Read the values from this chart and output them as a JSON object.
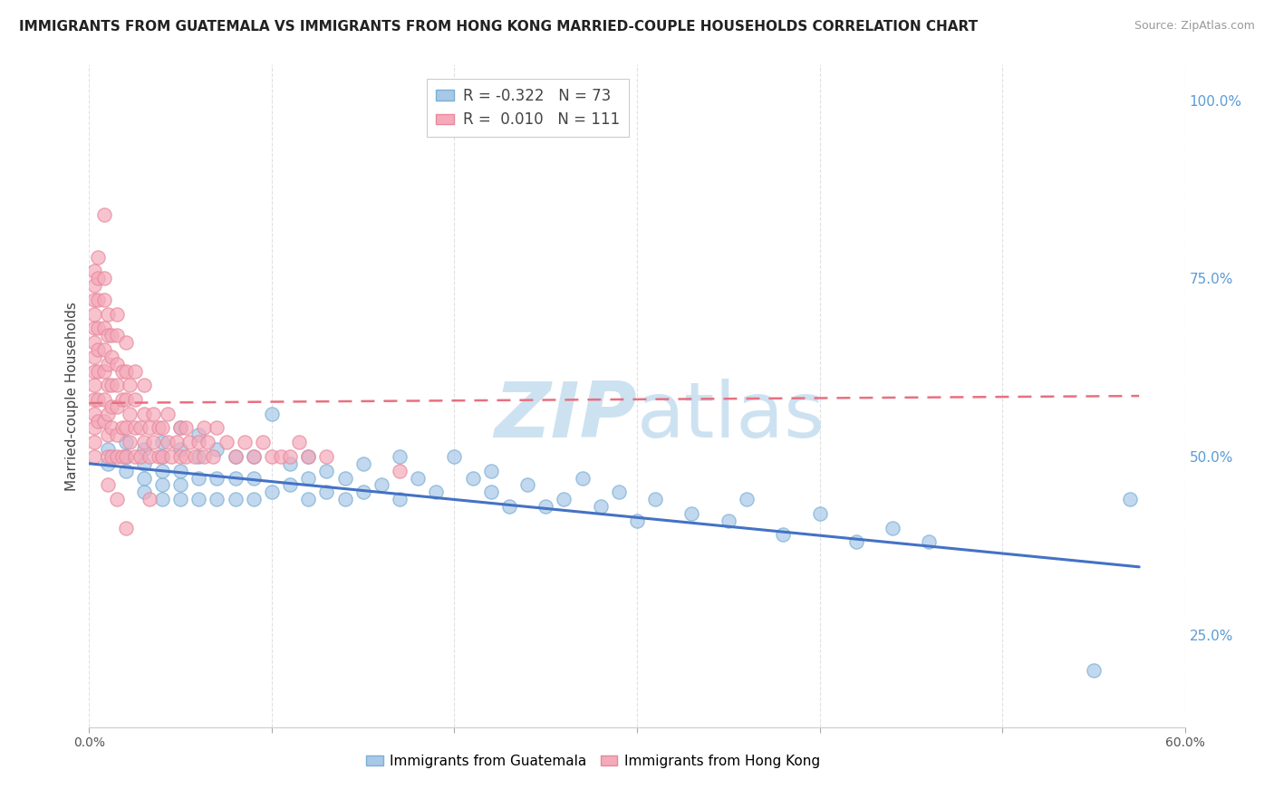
{
  "title": "IMMIGRANTS FROM GUATEMALA VS IMMIGRANTS FROM HONG KONG MARRIED-COUPLE HOUSEHOLDS CORRELATION CHART",
  "source": "Source: ZipAtlas.com",
  "ylabel": "Married-couple Households",
  "legend_blue_r": "-0.322",
  "legend_blue_n": "73",
  "legend_pink_r": "0.010",
  "legend_pink_n": "111",
  "color_blue_fill": "#A8C8E8",
  "color_blue_edge": "#7AAFD4",
  "color_pink_fill": "#F4AABB",
  "color_pink_edge": "#E8889A",
  "color_blue_line": "#4472C4",
  "color_pink_line": "#E87080",
  "watermark_color": "#D8E8F0",
  "xlim": [
    0.0,
    0.6
  ],
  "ylim": [
    0.12,
    1.05
  ],
  "right_yticks": [
    0.25,
    0.5,
    0.75,
    1.0
  ],
  "right_yticklabels": [
    "25.0%",
    "50.0%",
    "75.0%",
    "100.0%"
  ],
  "blue_line_x": [
    0.0,
    0.575
  ],
  "blue_line_y": [
    0.49,
    0.345
  ],
  "pink_line_x": [
    0.0,
    0.575
  ],
  "pink_line_y": [
    0.575,
    0.585
  ],
  "blue_scatter_x": [
    0.01,
    0.01,
    0.02,
    0.02,
    0.02,
    0.03,
    0.03,
    0.03,
    0.03,
    0.04,
    0.04,
    0.04,
    0.04,
    0.04,
    0.05,
    0.05,
    0.05,
    0.05,
    0.05,
    0.06,
    0.06,
    0.06,
    0.06,
    0.07,
    0.07,
    0.07,
    0.08,
    0.08,
    0.08,
    0.09,
    0.09,
    0.09,
    0.1,
    0.1,
    0.11,
    0.11,
    0.12,
    0.12,
    0.12,
    0.13,
    0.13,
    0.14,
    0.14,
    0.15,
    0.15,
    0.16,
    0.17,
    0.17,
    0.18,
    0.19,
    0.2,
    0.21,
    0.22,
    0.22,
    0.23,
    0.24,
    0.25,
    0.26,
    0.27,
    0.28,
    0.29,
    0.3,
    0.31,
    0.33,
    0.35,
    0.36,
    0.38,
    0.4,
    0.42,
    0.44,
    0.46,
    0.55,
    0.57
  ],
  "blue_scatter_y": [
    0.49,
    0.51,
    0.48,
    0.5,
    0.52,
    0.45,
    0.47,
    0.49,
    0.51,
    0.44,
    0.46,
    0.48,
    0.5,
    0.52,
    0.44,
    0.46,
    0.48,
    0.51,
    0.54,
    0.44,
    0.47,
    0.5,
    0.53,
    0.44,
    0.47,
    0.51,
    0.44,
    0.47,
    0.5,
    0.44,
    0.47,
    0.5,
    0.45,
    0.56,
    0.46,
    0.49,
    0.44,
    0.47,
    0.5,
    0.45,
    0.48,
    0.44,
    0.47,
    0.45,
    0.49,
    0.46,
    0.5,
    0.44,
    0.47,
    0.45,
    0.5,
    0.47,
    0.45,
    0.48,
    0.43,
    0.46,
    0.43,
    0.44,
    0.47,
    0.43,
    0.45,
    0.41,
    0.44,
    0.42,
    0.41,
    0.44,
    0.39,
    0.42,
    0.38,
    0.4,
    0.38,
    0.2,
    0.44
  ],
  "pink_scatter_x": [
    0.003,
    0.003,
    0.003,
    0.003,
    0.003,
    0.003,
    0.003,
    0.003,
    0.003,
    0.003,
    0.003,
    0.003,
    0.003,
    0.003,
    0.005,
    0.005,
    0.005,
    0.005,
    0.005,
    0.005,
    0.005,
    0.005,
    0.008,
    0.008,
    0.008,
    0.008,
    0.008,
    0.008,
    0.008,
    0.008,
    0.01,
    0.01,
    0.01,
    0.01,
    0.01,
    0.01,
    0.01,
    0.01,
    0.012,
    0.012,
    0.012,
    0.012,
    0.012,
    0.012,
    0.015,
    0.015,
    0.015,
    0.015,
    0.015,
    0.015,
    0.015,
    0.015,
    0.018,
    0.018,
    0.018,
    0.018,
    0.02,
    0.02,
    0.02,
    0.02,
    0.02,
    0.02,
    0.022,
    0.022,
    0.022,
    0.025,
    0.025,
    0.025,
    0.025,
    0.028,
    0.028,
    0.03,
    0.03,
    0.03,
    0.033,
    0.033,
    0.033,
    0.035,
    0.035,
    0.038,
    0.038,
    0.04,
    0.04,
    0.043,
    0.043,
    0.045,
    0.048,
    0.05,
    0.05,
    0.053,
    0.053,
    0.055,
    0.058,
    0.06,
    0.063,
    0.063,
    0.065,
    0.068,
    0.07,
    0.075,
    0.08,
    0.085,
    0.09,
    0.095,
    0.1,
    0.105,
    0.11,
    0.115,
    0.12,
    0.13,
    0.17
  ],
  "pink_scatter_y": [
    0.5,
    0.52,
    0.54,
    0.56,
    0.58,
    0.6,
    0.62,
    0.64,
    0.66,
    0.68,
    0.7,
    0.72,
    0.74,
    0.76,
    0.55,
    0.58,
    0.62,
    0.65,
    0.68,
    0.72,
    0.75,
    0.78,
    0.55,
    0.58,
    0.62,
    0.65,
    0.68,
    0.72,
    0.75,
    0.84,
    0.5,
    0.53,
    0.56,
    0.6,
    0.63,
    0.67,
    0.7,
    0.46,
    0.5,
    0.54,
    0.57,
    0.6,
    0.64,
    0.67,
    0.5,
    0.53,
    0.57,
    0.6,
    0.63,
    0.67,
    0.7,
    0.44,
    0.5,
    0.54,
    0.58,
    0.62,
    0.5,
    0.54,
    0.58,
    0.62,
    0.66,
    0.4,
    0.52,
    0.56,
    0.6,
    0.5,
    0.54,
    0.58,
    0.62,
    0.5,
    0.54,
    0.52,
    0.56,
    0.6,
    0.5,
    0.54,
    0.44,
    0.52,
    0.56,
    0.5,
    0.54,
    0.5,
    0.54,
    0.52,
    0.56,
    0.5,
    0.52,
    0.5,
    0.54,
    0.5,
    0.54,
    0.52,
    0.5,
    0.52,
    0.5,
    0.54,
    0.52,
    0.5,
    0.54,
    0.52,
    0.5,
    0.52,
    0.5,
    0.52,
    0.5,
    0.5,
    0.5,
    0.52,
    0.5,
    0.5,
    0.48
  ],
  "background_color": "#ffffff",
  "grid_color": "#e0e0e0",
  "grid_style": "--"
}
